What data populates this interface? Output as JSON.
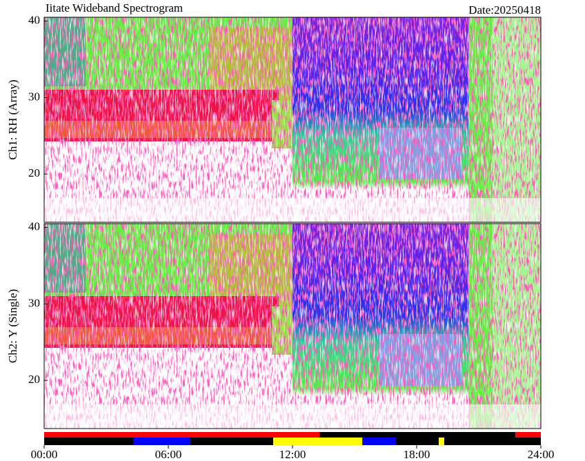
{
  "chart_data": [
    {
      "type": "spectrogram",
      "title": "Iitate Wideband Spectrogram",
      "date": "Date:20250418",
      "ylabel": "Ch1: RH (Array)",
      "xlim": [
        0,
        24
      ],
      "ylim": [
        13.7,
        40.5
      ],
      "yticks": [
        20,
        30,
        40
      ]
    },
    {
      "type": "spectrogram",
      "ylabel": "Ch2: Y (Single)",
      "xlim": [
        0,
        24
      ],
      "ylim": [
        13.7,
        40.5
      ],
      "yticks": [
        20,
        30,
        40
      ]
    },
    {
      "type": "timeline",
      "xlim": [
        0,
        24
      ],
      "xticks": [
        {
          "value": 0,
          "label": "00:00"
        },
        {
          "value": 6,
          "label": "06:00"
        },
        {
          "value": 12,
          "label": "12:00"
        },
        {
          "value": 18,
          "label": "18:00"
        },
        {
          "value": 24,
          "label": "24:00"
        }
      ],
      "rows": [
        [
          {
            "start": 0,
            "end": 13.3,
            "color": "#ff0000"
          },
          {
            "start": 13.3,
            "end": 22.77,
            "color": "#000000"
          },
          {
            "start": 22.77,
            "end": 24,
            "color": "#ff0000"
          }
        ],
        [
          {
            "start": 0,
            "end": 4.33,
            "color": "#000000"
          },
          {
            "start": 4.33,
            "end": 7.07,
            "color": "#0000ff"
          },
          {
            "start": 7.07,
            "end": 11.07,
            "color": "#000000"
          },
          {
            "start": 11.07,
            "end": 15.37,
            "color": "#ffff00"
          },
          {
            "start": 15.37,
            "end": 17,
            "color": "#0000ff"
          },
          {
            "start": 17,
            "end": 19.07,
            "color": "#000000"
          },
          {
            "start": 19.07,
            "end": 19.33,
            "color": "#ffff00"
          },
          {
            "start": 19.33,
            "end": 24,
            "color": "#000000"
          }
        ]
      ]
    }
  ]
}
